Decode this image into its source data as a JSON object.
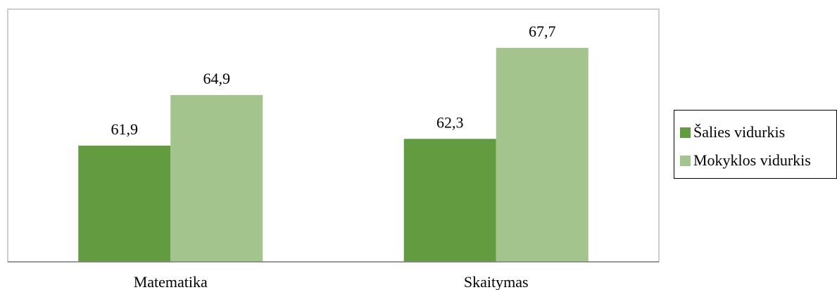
{
  "chart_data": {
    "type": "bar",
    "categories": [
      "Matematika",
      "Skaitymas"
    ],
    "series": [
      {
        "name": "Šalies vidurkis",
        "values": [
          61.9,
          62.3
        ],
        "labels": [
          "61,9",
          "62,3"
        ],
        "color": "#629b40"
      },
      {
        "name": "Mokyklos vidurkis",
        "values": [
          64.9,
          67.7
        ],
        "labels": [
          "64,9",
          "67,7"
        ],
        "color": "#a3c48c"
      }
    ],
    "title": "",
    "xlabel": "",
    "ylabel": "",
    "ylim": [
      55,
      70
    ],
    "grid": false,
    "legend_position": "right"
  }
}
